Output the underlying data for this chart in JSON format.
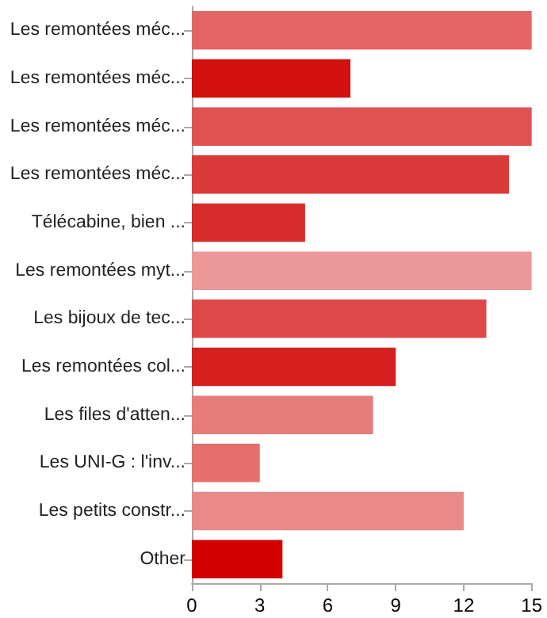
{
  "chart_data": {
    "type": "bar",
    "orientation": "horizontal",
    "categories": [
      "Les remontées méc...",
      "Les remontées méc...",
      "Les remontées méc...",
      "Les remontées méc...",
      "Télécabine, bien ...",
      "Les remontées myt...",
      "Les bijoux de tec...",
      "Les remontées col...",
      "Les files d'atten...",
      "Les UNI-G : l'inv...",
      "Les petits constr...",
      "Other"
    ],
    "values": [
      15,
      7,
      15,
      14,
      5,
      15,
      13,
      9,
      8,
      3,
      12,
      4
    ],
    "colors": [
      "#e36464",
      "#d21010",
      "#e05252",
      "#db3a3a",
      "#d82b2b",
      "#ec9898",
      "#df4848",
      "#d61f1f",
      "#e77c7c",
      "#e66e6e",
      "#e98989",
      "#d20000"
    ],
    "xlim": [
      0,
      15
    ],
    "xticks": [
      0,
      3,
      6,
      9,
      12,
      15
    ],
    "grid": false
  }
}
